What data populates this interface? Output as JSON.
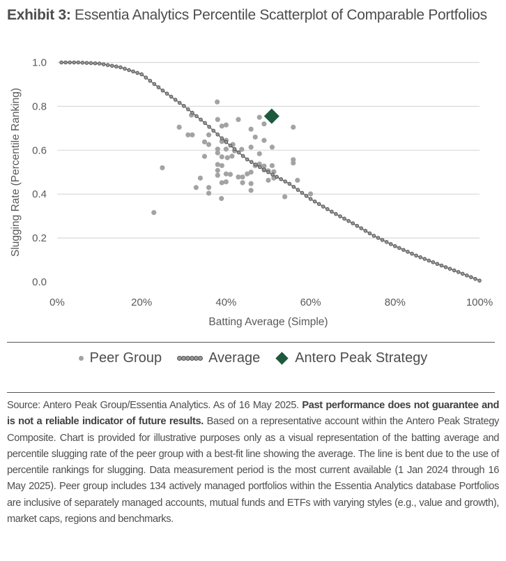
{
  "title": {
    "label": "Exhibit 3:",
    "text": " Essentia Analytics Percentile Scatterplot of Comparable Portfolios"
  },
  "chart_data": {
    "type": "scatter",
    "xlabel": "Batting Average (Simple)",
    "ylabel": "Slugging Rate (Percentile Ranking)",
    "xlim": [
      0,
      100
    ],
    "ylim": [
      0,
      1.0
    ],
    "x_ticks": [
      "0%",
      "20%",
      "40%",
      "60%",
      "80%",
      "100%"
    ],
    "y_ticks": [
      "0.0",
      "0.2",
      "0.4",
      "0.6",
      "0.8",
      "1.0"
    ],
    "grid": "horizontal",
    "legend_placement": "bottom",
    "colors": {
      "peer": "#a3a3a3",
      "average": "#555555",
      "average_fill": "#999999",
      "strategy": "#1d5a3d",
      "grid": "#d9d9d9"
    },
    "series": [
      {
        "name": "Peer Group",
        "type": "scatter",
        "points": [
          [
            37.9,
            0.82
          ],
          [
            31.8,
            0.76
          ],
          [
            47.9,
            0.75
          ],
          [
            38.0,
            0.74
          ],
          [
            42.9,
            0.74
          ],
          [
            49.0,
            0.72
          ],
          [
            39.0,
            0.71
          ],
          [
            40.0,
            0.715
          ],
          [
            28.9,
            0.705
          ],
          [
            55.9,
            0.705
          ],
          [
            45.9,
            0.696
          ],
          [
            31.0,
            0.67
          ],
          [
            32.0,
            0.67
          ],
          [
            35.9,
            0.67
          ],
          [
            46.9,
            0.66
          ],
          [
            49.0,
            0.645
          ],
          [
            34.9,
            0.638
          ],
          [
            35.9,
            0.626
          ],
          [
            39.0,
            0.64
          ],
          [
            40.0,
            0.645
          ],
          [
            41.6,
            0.626
          ],
          [
            38.0,
            0.605
          ],
          [
            40.0,
            0.605
          ],
          [
            45.9,
            0.614
          ],
          [
            50.9,
            0.614
          ],
          [
            43.7,
            0.604
          ],
          [
            42.0,
            0.597
          ],
          [
            38.0,
            0.588
          ],
          [
            47.9,
            0.584
          ],
          [
            34.9,
            0.572
          ],
          [
            39.0,
            0.57
          ],
          [
            40.3,
            0.566
          ],
          [
            41.4,
            0.573
          ],
          [
            55.9,
            0.557
          ],
          [
            55.9,
            0.542
          ],
          [
            24.9,
            0.52
          ],
          [
            38.0,
            0.535
          ],
          [
            39.0,
            0.53
          ],
          [
            46.9,
            0.53
          ],
          [
            47.9,
            0.537
          ],
          [
            49.0,
            0.528
          ],
          [
            50.9,
            0.53
          ],
          [
            38.0,
            0.508
          ],
          [
            49.0,
            0.51
          ],
          [
            50.0,
            0.506
          ],
          [
            51.3,
            0.502
          ],
          [
            45.9,
            0.5
          ],
          [
            40.0,
            0.492
          ],
          [
            41.0,
            0.49
          ],
          [
            38.0,
            0.486
          ],
          [
            45.0,
            0.492
          ],
          [
            42.9,
            0.478
          ],
          [
            43.9,
            0.478
          ],
          [
            33.9,
            0.473
          ],
          [
            51.3,
            0.473
          ],
          [
            56.9,
            0.463
          ],
          [
            50.0,
            0.463
          ],
          [
            39.0,
            0.452
          ],
          [
            40.0,
            0.456
          ],
          [
            43.9,
            0.452
          ],
          [
            45.9,
            0.448
          ],
          [
            32.9,
            0.43
          ],
          [
            35.9,
            0.43
          ],
          [
            35.9,
            0.404
          ],
          [
            45.9,
            0.417
          ],
          [
            60.0,
            0.401
          ],
          [
            53.9,
            0.388
          ],
          [
            38.9,
            0.38
          ],
          [
            22.9,
            0.316
          ]
        ]
      },
      {
        "name": "Average",
        "type": "line",
        "x": [
          1,
          5,
          10,
          15,
          20,
          25,
          30,
          35,
          40,
          45,
          50,
          55,
          60,
          65,
          70,
          75,
          80,
          85,
          90,
          95,
          100
        ],
        "y": [
          1.0,
          1.0,
          0.995,
          0.978,
          0.946,
          0.872,
          0.802,
          0.724,
          0.637,
          0.558,
          0.5,
          0.447,
          0.378,
          0.32,
          0.267,
          0.21,
          0.163,
          0.12,
          0.082,
          0.045,
          0.006
        ]
      },
      {
        "name": "Antero Peak Strategy",
        "type": "scatter",
        "points": [
          [
            50.8,
            0.755
          ]
        ]
      }
    ]
  },
  "legend": {
    "peer": "Peer Group",
    "average": "Average",
    "strategy": "Antero Peak Strategy"
  },
  "source": {
    "part1": "Source: Antero Peak Group/Essentia Analytics. As of 16 May 2025. ",
    "bold": "Past performance does not guarantee and is not a reliable indicator of future results.",
    "part2": " Based on a representative account within the Antero Peak Strategy Composite. Chart is provided for illustrative purposes only as a visual representation of the batting average and percentile slugging rate of the peer group with a best-fit line showing the average. The line is bent due to the use of percentile rankings for slugging.  Data measurement period is the most current available (1 Jan 2024 through 16 May 2025). Peer group includes 134 actively managed portfolios within the Essentia Analytics database Portfolios are inclusive of separately managed accounts, mutual funds and ETFs with varying styles (e.g., value and growth), market caps, regions and benchmarks."
  }
}
